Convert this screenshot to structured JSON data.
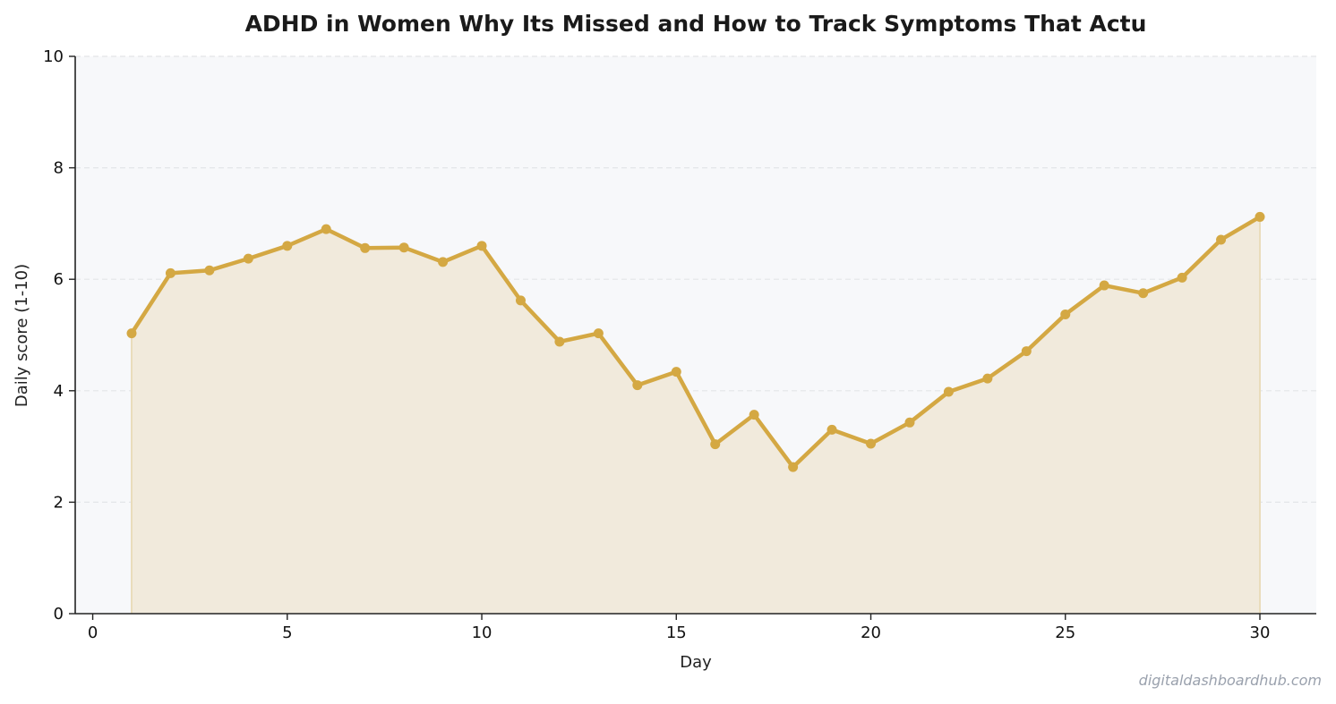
{
  "chart_data": {
    "type": "area",
    "title": "ADHD in Women  Why Its Missed and How to Track Symptoms That Actu",
    "xlabel": "Day",
    "ylabel": "Daily score (1-10)",
    "xlim": [
      -0.45,
      31.45
    ],
    "ylim": [
      0,
      10
    ],
    "xticks": [
      0,
      5,
      10,
      15,
      20,
      25,
      30
    ],
    "yticks": [
      0,
      2,
      4,
      6,
      8,
      10
    ],
    "grid": "y-dashed",
    "legend": "none",
    "colors": {
      "line": "#d4a843",
      "fill": "#f1eadc",
      "plot_bg": "#f7f8fa",
      "grid": "#e3e5e8",
      "axis": "#222222"
    },
    "series": [
      {
        "x": [
          1,
          2,
          3,
          4,
          5,
          6,
          7,
          8,
          9,
          10,
          11,
          12,
          13,
          14,
          15,
          16,
          17,
          18,
          19,
          20,
          21,
          22,
          23,
          24,
          25,
          26,
          27,
          28,
          29,
          30
        ],
        "values": [
          5.03,
          6.11,
          6.16,
          6.37,
          6.6,
          6.9,
          6.56,
          6.57,
          6.31,
          6.6,
          5.62,
          4.88,
          5.03,
          4.1,
          4.34,
          3.04,
          3.57,
          2.63,
          3.3,
          3.05,
          3.43,
          3.98,
          4.22,
          4.71,
          5.37,
          5.89,
          5.75,
          6.03,
          6.71,
          7.12
        ]
      }
    ]
  },
  "watermark": "digitaldashboardhub.com"
}
